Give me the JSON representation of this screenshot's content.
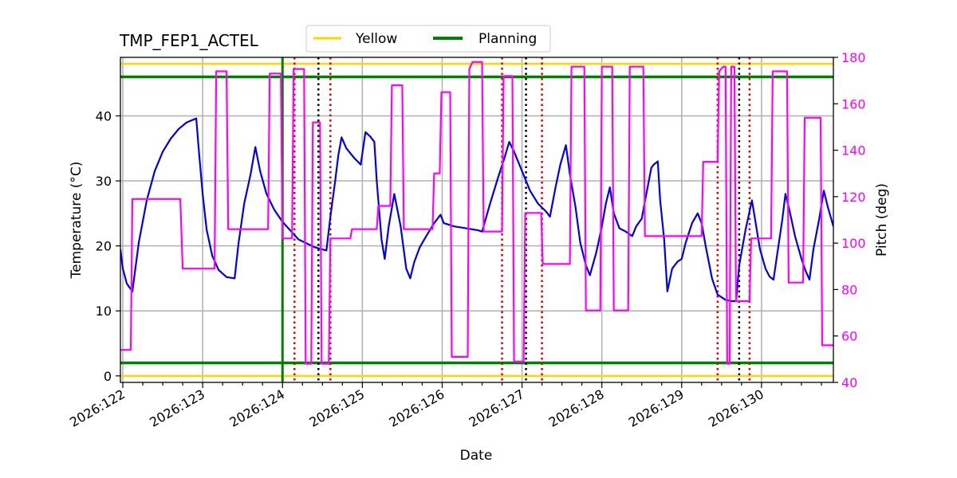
{
  "chart_data": {
    "type": "line",
    "title": "TMP_FEP1_ACTEL",
    "xlabel": "Date",
    "ylabel": "Temperature ($^\\circ$C)",
    "ylabel_display": "Temperature (°C)",
    "y2label": "Pitch (deg)",
    "xlim": [
      121.97,
      130.9
    ],
    "ylim": [
      -1,
      49
    ],
    "y2lim": [
      40,
      180
    ],
    "x_ticks": [
      122,
      123,
      124,
      125,
      126,
      127,
      128,
      129,
      130
    ],
    "x_tick_labels": [
      "2026:122",
      "2026:123",
      "2026:124",
      "2026:125",
      "2026:126",
      "2026:127",
      "2026:128",
      "2026:129",
      "2026:130"
    ],
    "y_ticks": [
      0,
      10,
      20,
      30,
      40
    ],
    "y2_ticks": [
      40,
      60,
      80,
      100,
      120,
      140,
      160,
      180
    ],
    "grid": true,
    "legend": {
      "placement": "top-center, outside plot",
      "entries": [
        {
          "label": "Yellow",
          "color": "#ffd700"
        },
        {
          "label": "Planning",
          "color": "#008000"
        }
      ]
    },
    "limit_lines": [
      {
        "name": "Yellow",
        "color": "#ffd700",
        "y": [
          0,
          48
        ]
      },
      {
        "name": "Planning",
        "color": "#008000",
        "y": [
          2,
          46
        ]
      }
    ],
    "now_marker": {
      "x": 124.0,
      "color": "#008000"
    },
    "red_dotted_x": [
      124.15,
      124.6,
      126.75,
      127.25,
      129.45,
      129.85
    ],
    "black_dotted_x": [
      124.45,
      127.05,
      129.72
    ],
    "colors": {
      "temperature": "#0000ee",
      "pitch": "#ff00ff",
      "red_marker": "#e00000",
      "black_marker": "#000000",
      "grid": "#b0b0b0"
    },
    "series": [
      {
        "name": "Temperature",
        "axis": "left",
        "color": "#0000ee",
        "points": [
          [
            121.97,
            19.5
          ],
          [
            122.0,
            16.5
          ],
          [
            122.05,
            14.2
          ],
          [
            122.12,
            13.0
          ],
          [
            122.2,
            20.5
          ],
          [
            122.3,
            27.0
          ],
          [
            122.4,
            31.5
          ],
          [
            122.5,
            34.5
          ],
          [
            122.6,
            36.5
          ],
          [
            122.7,
            38.0
          ],
          [
            122.8,
            39.0
          ],
          [
            122.92,
            39.6
          ],
          [
            122.95,
            35.0
          ],
          [
            123.0,
            28.0
          ],
          [
            123.05,
            22.5
          ],
          [
            123.12,
            18.5
          ],
          [
            123.2,
            16.3
          ],
          [
            123.3,
            15.2
          ],
          [
            123.4,
            15.0
          ],
          [
            123.45,
            20.5
          ],
          [
            123.52,
            26.5
          ],
          [
            123.6,
            31.0
          ],
          [
            123.66,
            35.2
          ],
          [
            123.72,
            31.5
          ],
          [
            123.8,
            28.0
          ],
          [
            123.9,
            25.5
          ],
          [
            124.0,
            23.7
          ],
          [
            124.2,
            21.0
          ],
          [
            124.4,
            19.8
          ],
          [
            124.55,
            19.3
          ],
          [
            124.6,
            24.5
          ],
          [
            124.66,
            30.0
          ],
          [
            124.7,
            34.0
          ],
          [
            124.74,
            36.7
          ],
          [
            124.8,
            35.0
          ],
          [
            124.9,
            33.5
          ],
          [
            124.98,
            32.5
          ],
          [
            125.04,
            37.5
          ],
          [
            125.1,
            36.8
          ],
          [
            125.15,
            36.0
          ],
          [
            125.18,
            30.0
          ],
          [
            125.24,
            21.0
          ],
          [
            125.28,
            18.0
          ],
          [
            125.33,
            23.0
          ],
          [
            125.4,
            28.0
          ],
          [
            125.48,
            23.0
          ],
          [
            125.55,
            16.5
          ],
          [
            125.6,
            15.0
          ],
          [
            125.65,
            17.5
          ],
          [
            125.72,
            19.8
          ],
          [
            125.8,
            21.5
          ],
          [
            125.9,
            23.5
          ],
          [
            125.98,
            24.8
          ],
          [
            126.02,
            23.5
          ],
          [
            126.15,
            23.0
          ],
          [
            126.3,
            22.7
          ],
          [
            126.45,
            22.4
          ],
          [
            126.5,
            22.2
          ],
          [
            126.6,
            26.5
          ],
          [
            126.7,
            30.5
          ],
          [
            126.78,
            33.5
          ],
          [
            126.84,
            36.0
          ],
          [
            126.9,
            34.5
          ],
          [
            127.0,
            31.5
          ],
          [
            127.1,
            28.5
          ],
          [
            127.2,
            26.5
          ],
          [
            127.3,
            25.3
          ],
          [
            127.35,
            24.5
          ],
          [
            127.42,
            29.0
          ],
          [
            127.48,
            32.5
          ],
          [
            127.55,
            35.5
          ],
          [
            127.6,
            31.0
          ],
          [
            127.67,
            26.0
          ],
          [
            127.73,
            20.5
          ],
          [
            127.8,
            17.0
          ],
          [
            127.85,
            15.5
          ],
          [
            127.93,
            19.0
          ],
          [
            128.0,
            23.0
          ],
          [
            128.05,
            26.5
          ],
          [
            128.1,
            29.0
          ],
          [
            128.15,
            25.0
          ],
          [
            128.22,
            22.7
          ],
          [
            128.3,
            22.2
          ],
          [
            128.38,
            21.5
          ],
          [
            128.43,
            23.0
          ],
          [
            128.5,
            24.2
          ],
          [
            128.55,
            27.5
          ],
          [
            128.62,
            32.0
          ],
          [
            128.65,
            32.5
          ],
          [
            128.7,
            33.0
          ],
          [
            128.73,
            27.0
          ],
          [
            128.78,
            21.0
          ],
          [
            128.82,
            13.0
          ],
          [
            128.88,
            16.5
          ],
          [
            128.95,
            17.6
          ],
          [
            129.0,
            18.0
          ],
          [
            129.05,
            20.5
          ],
          [
            129.13,
            23.5
          ],
          [
            129.2,
            25.0
          ],
          [
            129.25,
            23.5
          ],
          [
            129.3,
            20.0
          ],
          [
            129.38,
            15.0
          ],
          [
            129.45,
            12.5
          ],
          [
            129.55,
            11.7
          ],
          [
            129.62,
            11.5
          ],
          [
            129.68,
            11.5
          ],
          [
            129.72,
            17.0
          ],
          [
            129.8,
            22.5
          ],
          [
            129.88,
            27.0
          ],
          [
            129.92,
            24.0
          ],
          [
            129.98,
            19.5
          ],
          [
            130.05,
            16.5
          ],
          [
            130.1,
            15.3
          ],
          [
            130.15,
            14.8
          ],
          [
            130.2,
            19.0
          ],
          [
            130.26,
            24.0
          ],
          [
            130.3,
            28.0
          ],
          [
            130.35,
            25.5
          ],
          [
            130.42,
            21.5
          ],
          [
            130.5,
            18.0
          ],
          [
            130.55,
            16.2
          ],
          [
            130.6,
            14.8
          ],
          [
            130.65,
            19.5
          ],
          [
            130.72,
            24.0
          ],
          [
            130.78,
            28.5
          ],
          [
            130.83,
            26.0
          ],
          [
            130.9,
            23.0
          ]
        ]
      },
      {
        "name": "Pitch",
        "axis": "right",
        "color": "#ff00ff",
        "points": [
          [
            121.97,
            54
          ],
          [
            122.1,
            54
          ],
          [
            122.12,
            119
          ],
          [
            122.72,
            119
          ],
          [
            122.75,
            89
          ],
          [
            123.15,
            89
          ],
          [
            123.17,
            174
          ],
          [
            123.3,
            174
          ],
          [
            123.32,
            106
          ],
          [
            123.82,
            106
          ],
          [
            123.84,
            173
          ],
          [
            123.98,
            173
          ],
          [
            124.0,
            102
          ],
          [
            124.12,
            102
          ],
          [
            124.14,
            175
          ],
          [
            124.27,
            175
          ],
          [
            124.29,
            48
          ],
          [
            124.36,
            48
          ],
          [
            124.38,
            152
          ],
          [
            124.47,
            152
          ],
          [
            124.49,
            48
          ],
          [
            124.58,
            48
          ],
          [
            124.6,
            102
          ],
          [
            124.85,
            102
          ],
          [
            124.87,
            106
          ],
          [
            125.18,
            106
          ],
          [
            125.2,
            116
          ],
          [
            125.35,
            116
          ],
          [
            125.37,
            168
          ],
          [
            125.5,
            168
          ],
          [
            125.52,
            106
          ],
          [
            125.88,
            106
          ],
          [
            125.9,
            130
          ],
          [
            125.97,
            130
          ],
          [
            125.99,
            165
          ],
          [
            126.1,
            165
          ],
          [
            126.12,
            51
          ],
          [
            126.32,
            51
          ],
          [
            126.34,
            175
          ],
          [
            126.38,
            178
          ],
          [
            126.5,
            178
          ],
          [
            126.52,
            105
          ],
          [
            126.75,
            105
          ],
          [
            126.77,
            172
          ],
          [
            126.88,
            172
          ],
          [
            126.9,
            49
          ],
          [
            127.02,
            49
          ],
          [
            127.04,
            113
          ],
          [
            127.24,
            113
          ],
          [
            127.26,
            91
          ],
          [
            127.6,
            91
          ],
          [
            127.62,
            176
          ],
          [
            127.78,
            176
          ],
          [
            127.8,
            71
          ],
          [
            127.98,
            71
          ],
          [
            128.0,
            176
          ],
          [
            128.13,
            176
          ],
          [
            128.15,
            71
          ],
          [
            128.33,
            71
          ],
          [
            128.35,
            176
          ],
          [
            128.52,
            176
          ],
          [
            128.54,
            103
          ],
          [
            129.25,
            103
          ],
          [
            129.27,
            135
          ],
          [
            129.45,
            135
          ],
          [
            129.47,
            174
          ],
          [
            129.52,
            176
          ],
          [
            129.55,
            176
          ],
          [
            129.57,
            48
          ],
          [
            129.6,
            48
          ],
          [
            129.62,
            176
          ],
          [
            129.66,
            176
          ],
          [
            129.68,
            75
          ],
          [
            129.85,
            75
          ],
          [
            129.87,
            102
          ],
          [
            130.12,
            102
          ],
          [
            130.14,
            174
          ],
          [
            130.32,
            174
          ],
          [
            130.34,
            83
          ],
          [
            130.52,
            83
          ],
          [
            130.54,
            154
          ],
          [
            130.74,
            154
          ],
          [
            130.76,
            56
          ],
          [
            130.9,
            56
          ]
        ]
      }
    ]
  }
}
